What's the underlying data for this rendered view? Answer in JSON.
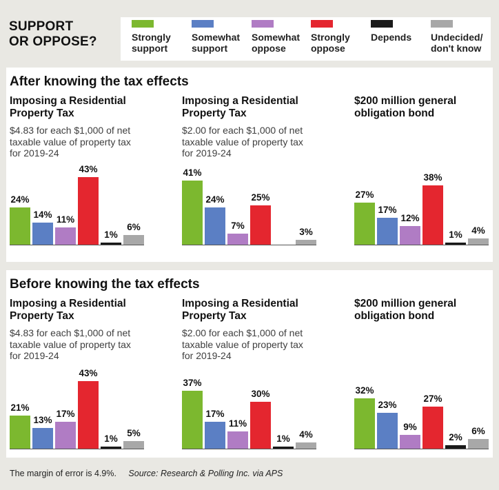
{
  "header": {
    "title_lines": [
      "SUPPORT",
      "OR OPPOSE?"
    ]
  },
  "legend": [
    {
      "label_lines": [
        "Strongly",
        "support"
      ],
      "color": "#7cb82f"
    },
    {
      "label_lines": [
        "Somewhat",
        "support"
      ],
      "color": "#5b7fc4"
    },
    {
      "label_lines": [
        "Somewhat",
        "oppose"
      ],
      "color": "#b07cc4"
    },
    {
      "label_lines": [
        "Strongly",
        "oppose"
      ],
      "color": "#e4262f"
    },
    {
      "label_lines": [
        "Depends",
        ""
      ],
      "color": "#1a1a1a"
    },
    {
      "label_lines": [
        "Undecided/",
        "don't know"
      ],
      "color": "#a8a8a8"
    }
  ],
  "panels": [
    {
      "title": "After knowing the tax effects"
    },
    {
      "title": "Before knowing the tax effects"
    }
  ],
  "footer": {
    "margin": "The margin of error is 4.9%.",
    "source": "Source: Research & Polling Inc. via APS"
  },
  "chart_data": [
    {
      "type": "bar",
      "panel": "After knowing the tax effects",
      "title_lines": [
        "Imposing a Residential",
        "Property Tax"
      ],
      "subtitle_lines": [
        "$4.83 for each $1,000 of net",
        "taxable value of property tax",
        "for 2019-24"
      ],
      "categories": [
        "Strongly support",
        "Somewhat support",
        "Somewhat oppose",
        "Strongly oppose",
        "Depends",
        "Undecided/don't know"
      ],
      "values": [
        24,
        14,
        11,
        43,
        1,
        6
      ],
      "labels": [
        "24%",
        "14%",
        "11%",
        "43%",
        "1%",
        "6%"
      ]
    },
    {
      "type": "bar",
      "panel": "After knowing the tax effects",
      "title_lines": [
        "Imposing a Residential",
        "Property Tax"
      ],
      "subtitle_lines": [
        "$2.00 for each $1,000 of net",
        "taxable value of property tax",
        "for 2019-24"
      ],
      "categories": [
        "Strongly support",
        "Somewhat support",
        "Somewhat oppose",
        "Strongly oppose",
        "Depends",
        "Undecided/don't know"
      ],
      "values": [
        41,
        24,
        7,
        25,
        0,
        3
      ],
      "labels": [
        "41%",
        "24%",
        "7%",
        "25%",
        "",
        "3%"
      ]
    },
    {
      "type": "bar",
      "panel": "After knowing the tax effects",
      "title_lines": [
        "$200 million general",
        "obligation bond"
      ],
      "subtitle_lines": [],
      "categories": [
        "Strongly support",
        "Somewhat support",
        "Somewhat oppose",
        "Strongly oppose",
        "Depends",
        "Undecided/don't know"
      ],
      "values": [
        27,
        17,
        12,
        38,
        1,
        4
      ],
      "labels": [
        "27%",
        "17%",
        "12%",
        "38%",
        "1%",
        "4%"
      ]
    },
    {
      "type": "bar",
      "panel": "Before knowing the tax effects",
      "title_lines": [
        "Imposing a Residential",
        "Property Tax"
      ],
      "subtitle_lines": [
        "$4.83 for each $1,000 of net",
        "taxable value of property tax",
        "for 2019-24"
      ],
      "categories": [
        "Strongly support",
        "Somewhat support",
        "Somewhat oppose",
        "Strongly oppose",
        "Depends",
        "Undecided/don't know"
      ],
      "values": [
        21,
        13,
        17,
        43,
        1,
        5
      ],
      "labels": [
        "21%",
        "13%",
        "17%",
        "43%",
        "1%",
        "5%"
      ]
    },
    {
      "type": "bar",
      "panel": "Before knowing the tax effects",
      "title_lines": [
        "Imposing a Residential",
        "Property Tax"
      ],
      "subtitle_lines": [
        "$2.00 for each $1,000 of net",
        "taxable value of property tax",
        "for 2019-24"
      ],
      "categories": [
        "Strongly support",
        "Somewhat support",
        "Somewhat oppose",
        "Strongly oppose",
        "Depends",
        "Undecided/don't know"
      ],
      "values": [
        37,
        17,
        11,
        30,
        1,
        4
      ],
      "labels": [
        "37%",
        "17%",
        "11%",
        "30%",
        "1%",
        "4%"
      ]
    },
    {
      "type": "bar",
      "panel": "Before knowing the tax effects",
      "title_lines": [
        "$200 million general",
        "obligation bond"
      ],
      "subtitle_lines": [],
      "categories": [
        "Strongly support",
        "Somewhat support",
        "Somewhat oppose",
        "Strongly oppose",
        "Depends",
        "Undecided/don't know"
      ],
      "values": [
        32,
        23,
        9,
        27,
        2,
        6
      ],
      "labels": [
        "32%",
        "23%",
        "9%",
        "27%",
        "2%",
        "6%"
      ]
    }
  ]
}
